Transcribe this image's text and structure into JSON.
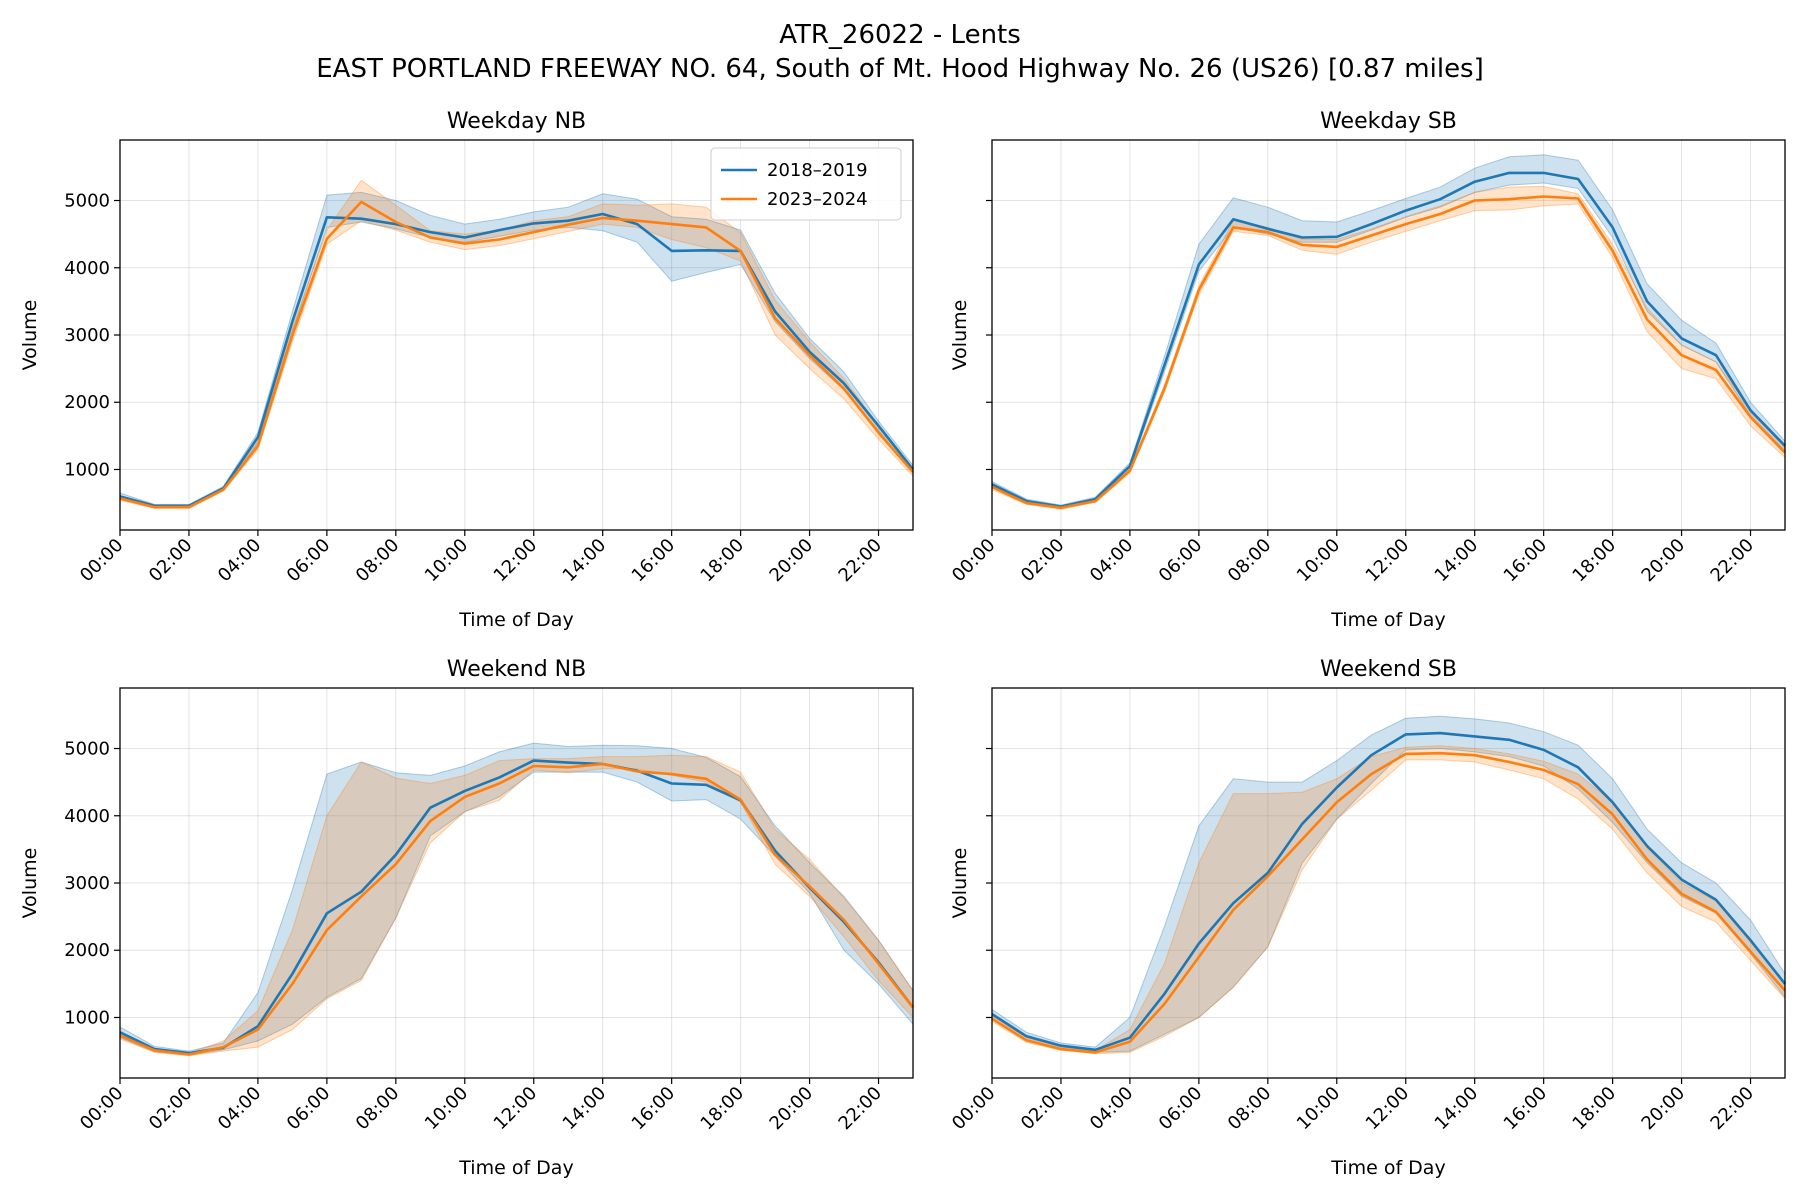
{
  "figure": {
    "title_line1": "ATR_26022 - Lents",
    "title_line2": "EAST PORTLAND FREEWAY NO. 64, South of Mt. Hood Highway No. 26 (US26) [0.87 miles]"
  },
  "colors": {
    "2018–2019": "#1f77b4",
    "2023–2024": "#ff7f0e"
  },
  "chart_data": [
    {
      "type": "line",
      "title": "Weekday NB",
      "xlabel": "Time of Day",
      "ylabel": "Volume",
      "x_ticks": [
        "00:00",
        "02:00",
        "04:00",
        "06:00",
        "08:00",
        "10:00",
        "12:00",
        "14:00",
        "16:00",
        "18:00",
        "20:00",
        "22:00"
      ],
      "x": [
        0,
        1,
        2,
        3,
        4,
        5,
        6,
        7,
        8,
        9,
        10,
        11,
        12,
        13,
        14,
        15,
        16,
        17,
        18,
        19,
        20,
        21,
        22,
        23
      ],
      "xlim": [
        0,
        23
      ],
      "ylim": [
        100,
        5900
      ],
      "y_ticks": [
        1000,
        2000,
        3000,
        4000,
        5000
      ],
      "legend": "top-right",
      "grid": true,
      "series": [
        {
          "name": "2018–2019",
          "values": [
            600,
            460,
            460,
            720,
            1480,
            3200,
            4750,
            4730,
            4650,
            4530,
            4450,
            4560,
            4660,
            4700,
            4800,
            4650,
            4250,
            4260,
            4250,
            3350,
            2750,
            2280,
            1650,
            1000
          ],
          "lower": [
            560,
            440,
            440,
            690,
            1400,
            3050,
            4600,
            4680,
            4580,
            4450,
            4380,
            4470,
            4560,
            4600,
            4550,
            4380,
            3800,
            3930,
            4050,
            3200,
            2650,
            2180,
            1580,
            950
          ],
          "upper": [
            650,
            480,
            480,
            750,
            1550,
            3350,
            5080,
            5120,
            5000,
            4780,
            4650,
            4720,
            4830,
            4900,
            5100,
            5020,
            4760,
            4720,
            4560,
            3620,
            2950,
            2450,
            1720,
            1060
          ]
        },
        {
          "name": "2023–2024",
          "values": [
            570,
            440,
            440,
            700,
            1350,
            3000,
            4430,
            4980,
            4680,
            4450,
            4360,
            4420,
            4530,
            4640,
            4740,
            4700,
            4650,
            4600,
            4250,
            3250,
            2700,
            2200,
            1550,
            960
          ],
          "lower": [
            540,
            420,
            420,
            680,
            1300,
            2900,
            4350,
            4700,
            4560,
            4380,
            4270,
            4330,
            4430,
            4540,
            4650,
            4600,
            4420,
            4300,
            4100,
            3000,
            2500,
            2050,
            1450,
            900
          ],
          "upper": [
            600,
            460,
            460,
            730,
            1420,
            3100,
            4560,
            5300,
            4930,
            4550,
            4500,
            4560,
            4700,
            4760,
            4950,
            4930,
            4950,
            4900,
            4520,
            3520,
            2900,
            2350,
            1650,
            1000
          ]
        }
      ]
    },
    {
      "type": "line",
      "title": "Weekday SB",
      "xlabel": "Time of Day",
      "ylabel": "Volume",
      "x_ticks": [
        "00:00",
        "02:00",
        "04:00",
        "06:00",
        "08:00",
        "10:00",
        "12:00",
        "14:00",
        "16:00",
        "18:00",
        "20:00",
        "22:00"
      ],
      "x": [
        0,
        1,
        2,
        3,
        4,
        5,
        6,
        7,
        8,
        9,
        10,
        11,
        12,
        13,
        14,
        15,
        16,
        17,
        18,
        19,
        20,
        21,
        22,
        23
      ],
      "xlim": [
        0,
        23
      ],
      "ylim": [
        100,
        5900
      ],
      "y_ticks": [
        1000,
        2000,
        3000,
        4000,
        5000
      ],
      "grid": true,
      "series": [
        {
          "name": "2018–2019",
          "values": [
            780,
            530,
            450,
            560,
            1050,
            2550,
            4050,
            4720,
            4580,
            4450,
            4460,
            4650,
            4850,
            5020,
            5280,
            5410,
            5410,
            5320,
            4600,
            3500,
            2950,
            2700,
            1880,
            1350
          ],
          "lower": [
            740,
            510,
            430,
            540,
            1000,
            2450,
            3950,
            4600,
            4500,
            4380,
            4380,
            4560,
            4750,
            4900,
            5120,
            5230,
            5260,
            5180,
            4450,
            3350,
            2850,
            2600,
            1800,
            1280
          ],
          "upper": [
            820,
            560,
            470,
            590,
            1100,
            2680,
            4350,
            5040,
            4900,
            4700,
            4680,
            4850,
            5030,
            5200,
            5480,
            5650,
            5680,
            5600,
            4860,
            3760,
            3220,
            2880,
            2000,
            1420
          ]
        },
        {
          "name": "2023–2024",
          "values": [
            740,
            500,
            430,
            530,
            980,
            2200,
            3670,
            4600,
            4530,
            4340,
            4310,
            4480,
            4650,
            4800,
            5000,
            5020,
            5060,
            5030,
            4250,
            3230,
            2700,
            2480,
            1780,
            1250
          ],
          "lower": [
            700,
            480,
            410,
            510,
            950,
            2150,
            3600,
            4540,
            4480,
            4260,
            4200,
            4380,
            4540,
            4700,
            4850,
            4860,
            4920,
            4950,
            4150,
            3050,
            2500,
            2350,
            1650,
            1180
          ],
          "upper": [
            780,
            520,
            450,
            550,
            1010,
            2260,
            3730,
            4700,
            4600,
            4420,
            4420,
            4580,
            4760,
            4920,
            5120,
            5200,
            5210,
            5100,
            4350,
            3400,
            2850,
            2600,
            1900,
            1320
          ]
        }
      ]
    },
    {
      "type": "line",
      "title": "Weekend NB",
      "xlabel": "Time of Day",
      "ylabel": "Volume",
      "x_ticks": [
        "00:00",
        "02:00",
        "04:00",
        "06:00",
        "08:00",
        "10:00",
        "12:00",
        "14:00",
        "16:00",
        "18:00",
        "20:00",
        "22:00"
      ],
      "x": [
        0,
        1,
        2,
        3,
        4,
        5,
        6,
        7,
        8,
        9,
        10,
        11,
        12,
        13,
        14,
        15,
        16,
        17,
        18,
        19,
        20,
        21,
        22,
        23
      ],
      "xlim": [
        0,
        23
      ],
      "ylim": [
        100,
        5900
      ],
      "y_ticks": [
        1000,
        2000,
        3000,
        4000,
        5000
      ],
      "grid": true,
      "series": [
        {
          "name": "2018–2019",
          "values": [
            780,
            530,
            470,
            550,
            870,
            1650,
            2550,
            2870,
            3420,
            4120,
            4370,
            4570,
            4820,
            4790,
            4770,
            4670,
            4480,
            4460,
            4230,
            3480,
            2930,
            2420,
            1820,
            1150
          ],
          "lower": [
            700,
            490,
            440,
            520,
            650,
            900,
            1300,
            1580,
            2480,
            3700,
            4060,
            4280,
            4650,
            4650,
            4650,
            4500,
            4220,
            4240,
            3950,
            3400,
            2850,
            2000,
            1500,
            900
          ],
          "upper": [
            860,
            570,
            500,
            620,
            1370,
            2900,
            4620,
            4800,
            4640,
            4600,
            4740,
            4950,
            5080,
            5030,
            5050,
            5040,
            5000,
            4870,
            4580,
            3850,
            3300,
            2800,
            2150,
            1400
          ]
        },
        {
          "name": "2023–2024",
          "values": [
            730,
            510,
            450,
            560,
            820,
            1500,
            2300,
            2800,
            3280,
            3920,
            4280,
            4480,
            4740,
            4720,
            4770,
            4660,
            4620,
            4550,
            4240,
            3420,
            2950,
            2450,
            1800,
            1150
          ],
          "lower": [
            680,
            480,
            430,
            500,
            560,
            820,
            1280,
            1550,
            2480,
            3600,
            4060,
            4230,
            4680,
            4640,
            4700,
            4700,
            4600,
            4500,
            4200,
            3280,
            2800,
            2200,
            1550,
            1000
          ],
          "upper": [
            780,
            540,
            470,
            650,
            1100,
            2300,
            4000,
            4800,
            4560,
            4480,
            4600,
            4820,
            4850,
            4850,
            4880,
            4880,
            4900,
            4880,
            4650,
            3800,
            3350,
            2780,
            2150,
            1400
          ]
        }
      ]
    },
    {
      "type": "line",
      "title": "Weekend SB",
      "xlabel": "Time of Day",
      "ylabel": "Volume",
      "x_ticks": [
        "00:00",
        "02:00",
        "04:00",
        "06:00",
        "08:00",
        "10:00",
        "12:00",
        "14:00",
        "16:00",
        "18:00",
        "20:00",
        "22:00"
      ],
      "x": [
        0,
        1,
        2,
        3,
        4,
        5,
        6,
        7,
        8,
        9,
        10,
        11,
        12,
        13,
        14,
        15,
        16,
        17,
        18,
        19,
        20,
        21,
        22,
        23
      ],
      "xlim": [
        0,
        23
      ],
      "ylim": [
        100,
        5900
      ],
      "y_ticks": [
        1000,
        2000,
        3000,
        4000,
        5000
      ],
      "grid": true,
      "series": [
        {
          "name": "2018–2019",
          "values": [
            1050,
            720,
            580,
            520,
            700,
            1350,
            2100,
            2700,
            3150,
            3880,
            4420,
            4900,
            5210,
            5230,
            5180,
            5130,
            4980,
            4720,
            4200,
            3550,
            3050,
            2750,
            2150,
            1500
          ],
          "lower": [
            980,
            660,
            540,
            480,
            500,
            750,
            1000,
            1450,
            2050,
            3300,
            3950,
            4480,
            4980,
            5000,
            4950,
            4880,
            4740,
            4400,
            3900,
            3300,
            2800,
            2550,
            1950,
            1300
          ],
          "upper": [
            1120,
            780,
            620,
            560,
            1000,
            2350,
            3850,
            4550,
            4500,
            4500,
            4820,
            5200,
            5450,
            5480,
            5440,
            5380,
            5250,
            5050,
            4550,
            3800,
            3300,
            3000,
            2450,
            1650
          ]
        },
        {
          "name": "2023–2024",
          "values": [
            980,
            660,
            530,
            480,
            640,
            1200,
            1900,
            2600,
            3100,
            3650,
            4200,
            4620,
            4920,
            4930,
            4900,
            4800,
            4680,
            4470,
            4020,
            3350,
            2840,
            2570,
            1980,
            1400
          ]
        }
      ]
    }
  ]
}
